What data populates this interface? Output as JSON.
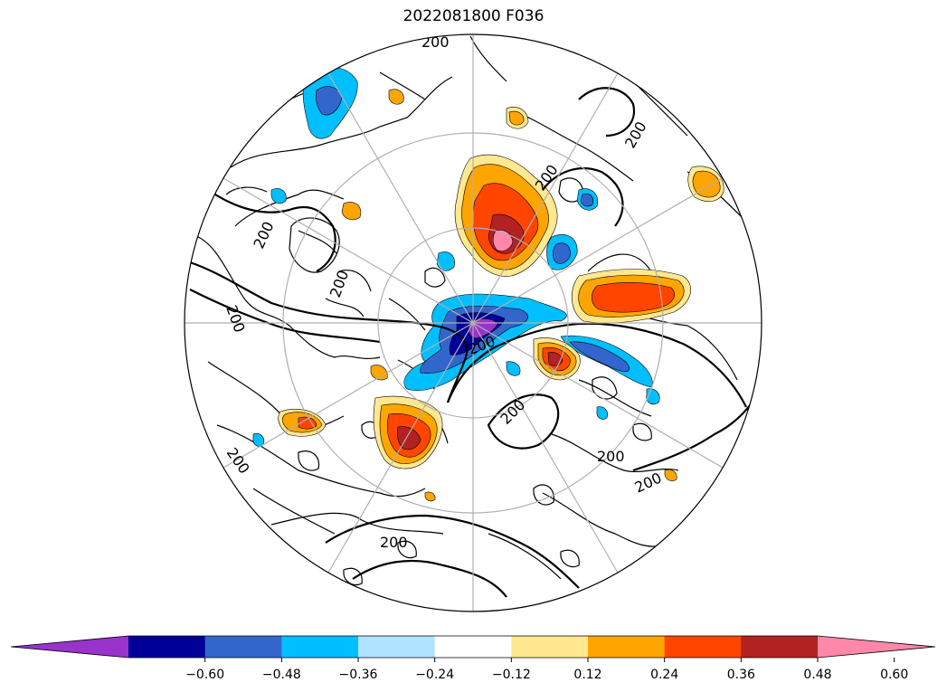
{
  "title": "2022081800 F036",
  "colorbar": {
    "colors": [
      "#9933cc",
      "#000099",
      "#3366cc",
      "#00bfff",
      "#aee4ff",
      "#ffffff",
      "#ffe88f",
      "#ffa500",
      "#ff4500",
      "#b22222",
      "#ff88aa"
    ],
    "ticks": [
      "−0.60",
      "−0.48",
      "−0.36",
      "−0.24",
      "−0.12",
      "0.12",
      "0.24",
      "0.36",
      "0.48",
      "0.60"
    ],
    "extend": "both"
  },
  "contour_label": "200",
  "contour_labels": [
    "200",
    "200",
    "200",
    "200",
    "200",
    "200",
    "200",
    "200",
    "200",
    "200",
    "200",
    "200"
  ],
  "projection": "north-polar-stereographic",
  "grid": true
}
